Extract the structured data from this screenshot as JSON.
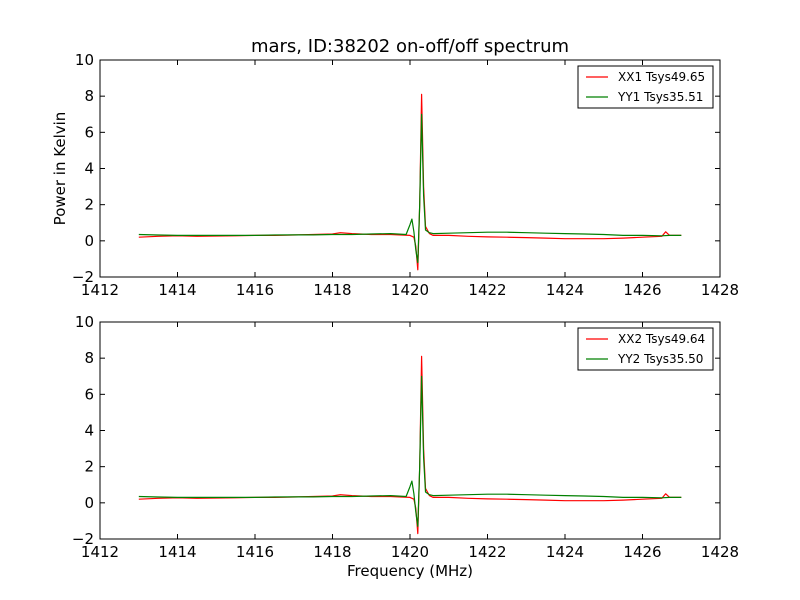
{
  "chart_data": [
    {
      "type": "line",
      "title": "mars, ID:38202 on-off/off spectrum",
      "xlabel": "",
      "ylabel": "Power in Kelvin",
      "xlim": [
        1412,
        1428
      ],
      "ylim": [
        -2,
        10
      ],
      "xticks": [
        1412,
        1414,
        1416,
        1418,
        1420,
        1422,
        1424,
        1426,
        1428
      ],
      "yticks": [
        -2,
        0,
        2,
        4,
        6,
        8,
        10
      ],
      "ytick_labels": [
        "−2",
        "0",
        "2",
        "4",
        "6",
        "8",
        "10"
      ],
      "legend": "top-right",
      "grid": false,
      "series": [
        {
          "name": "XX1 Tsys49.65",
          "color": "#ff0000",
          "x": [
            1413.0,
            1413.5,
            1414.0,
            1414.5,
            1415.0,
            1415.5,
            1416.0,
            1416.5,
            1417.0,
            1417.5,
            1418.0,
            1418.2,
            1418.5,
            1419.0,
            1419.5,
            1420.0,
            1420.1,
            1420.15,
            1420.2,
            1420.25,
            1420.3,
            1420.35,
            1420.4,
            1420.5,
            1420.6,
            1421.0,
            1421.5,
            1422.0,
            1422.5,
            1423.0,
            1423.5,
            1424.0,
            1424.5,
            1425.0,
            1425.5,
            1426.0,
            1426.5,
            1426.6,
            1426.7,
            1427.0
          ],
          "y": [
            0.2,
            0.25,
            0.28,
            0.25,
            0.27,
            0.28,
            0.3,
            0.3,
            0.32,
            0.35,
            0.38,
            0.45,
            0.4,
            0.35,
            0.35,
            0.3,
            0.2,
            -0.3,
            -1.6,
            2.0,
            8.1,
            3.0,
            0.8,
            0.4,
            0.3,
            0.3,
            0.25,
            0.22,
            0.2,
            0.18,
            0.15,
            0.12,
            0.12,
            0.12,
            0.15,
            0.2,
            0.25,
            0.5,
            0.3,
            0.3
          ]
        },
        {
          "name": "YY1 Tsys35.51",
          "color": "#008000",
          "x": [
            1413.0,
            1413.5,
            1414.0,
            1414.5,
            1415.0,
            1415.5,
            1416.0,
            1416.5,
            1417.0,
            1417.5,
            1418.0,
            1418.5,
            1419.0,
            1419.5,
            1419.9,
            1420.0,
            1420.05,
            1420.1,
            1420.15,
            1420.2,
            1420.25,
            1420.3,
            1420.35,
            1420.4,
            1420.5,
            1420.6,
            1421.0,
            1421.5,
            1422.0,
            1422.5,
            1423.0,
            1423.5,
            1424.0,
            1424.5,
            1425.0,
            1425.5,
            1426.0,
            1426.5,
            1426.7,
            1427.0
          ],
          "y": [
            0.35,
            0.32,
            0.3,
            0.3,
            0.3,
            0.3,
            0.3,
            0.32,
            0.33,
            0.33,
            0.35,
            0.35,
            0.38,
            0.4,
            0.35,
            0.9,
            1.2,
            0.5,
            -0.5,
            -1.2,
            2.0,
            7.0,
            2.5,
            0.6,
            0.45,
            0.4,
            0.42,
            0.45,
            0.48,
            0.48,
            0.45,
            0.42,
            0.4,
            0.38,
            0.35,
            0.3,
            0.3,
            0.28,
            0.3,
            0.3
          ]
        }
      ]
    },
    {
      "type": "line",
      "title": "",
      "xlabel": "Frequency (MHz)",
      "ylabel": "",
      "xlim": [
        1412,
        1428
      ],
      "ylim": [
        -2,
        10
      ],
      "xticks": [
        1412,
        1414,
        1416,
        1418,
        1420,
        1422,
        1424,
        1426,
        1428
      ],
      "yticks": [
        -2,
        0,
        2,
        4,
        6,
        8,
        10
      ],
      "ytick_labels": [
        "−2",
        "0",
        "2",
        "4",
        "6",
        "8",
        "10"
      ],
      "legend": "top-right",
      "grid": false,
      "series": [
        {
          "name": "XX2 Tsys49.64",
          "color": "#ff0000",
          "x": [
            1413.0,
            1413.5,
            1414.0,
            1414.5,
            1415.0,
            1415.5,
            1416.0,
            1416.5,
            1417.0,
            1417.5,
            1418.0,
            1418.2,
            1418.5,
            1419.0,
            1419.5,
            1420.0,
            1420.1,
            1420.15,
            1420.2,
            1420.25,
            1420.3,
            1420.35,
            1420.4,
            1420.5,
            1420.6,
            1421.0,
            1421.5,
            1422.0,
            1422.5,
            1423.0,
            1423.5,
            1424.0,
            1424.5,
            1425.0,
            1425.5,
            1426.0,
            1426.5,
            1426.6,
            1426.7,
            1427.0
          ],
          "y": [
            0.2,
            0.25,
            0.28,
            0.25,
            0.27,
            0.28,
            0.3,
            0.3,
            0.32,
            0.35,
            0.38,
            0.45,
            0.4,
            0.35,
            0.35,
            0.3,
            0.2,
            -0.3,
            -1.7,
            2.0,
            8.1,
            3.0,
            0.8,
            0.4,
            0.3,
            0.3,
            0.25,
            0.22,
            0.2,
            0.18,
            0.15,
            0.12,
            0.12,
            0.12,
            0.15,
            0.2,
            0.25,
            0.5,
            0.3,
            0.3
          ]
        },
        {
          "name": "YY2 Tsys35.50",
          "color": "#008000",
          "x": [
            1413.0,
            1413.5,
            1414.0,
            1414.5,
            1415.0,
            1415.5,
            1416.0,
            1416.5,
            1417.0,
            1417.5,
            1418.0,
            1418.5,
            1419.0,
            1419.5,
            1419.9,
            1420.0,
            1420.05,
            1420.1,
            1420.15,
            1420.2,
            1420.25,
            1420.3,
            1420.35,
            1420.4,
            1420.5,
            1420.6,
            1421.0,
            1421.5,
            1422.0,
            1422.5,
            1423.0,
            1423.5,
            1424.0,
            1424.5,
            1425.0,
            1425.5,
            1426.0,
            1426.5,
            1426.7,
            1427.0
          ],
          "y": [
            0.35,
            0.32,
            0.3,
            0.3,
            0.3,
            0.3,
            0.3,
            0.32,
            0.33,
            0.33,
            0.35,
            0.35,
            0.38,
            0.4,
            0.35,
            0.9,
            1.2,
            0.5,
            -0.5,
            -1.3,
            2.0,
            7.0,
            2.5,
            0.6,
            0.45,
            0.4,
            0.42,
            0.45,
            0.48,
            0.48,
            0.45,
            0.42,
            0.4,
            0.38,
            0.35,
            0.3,
            0.3,
            0.28,
            0.3,
            0.3
          ]
        }
      ]
    }
  ]
}
